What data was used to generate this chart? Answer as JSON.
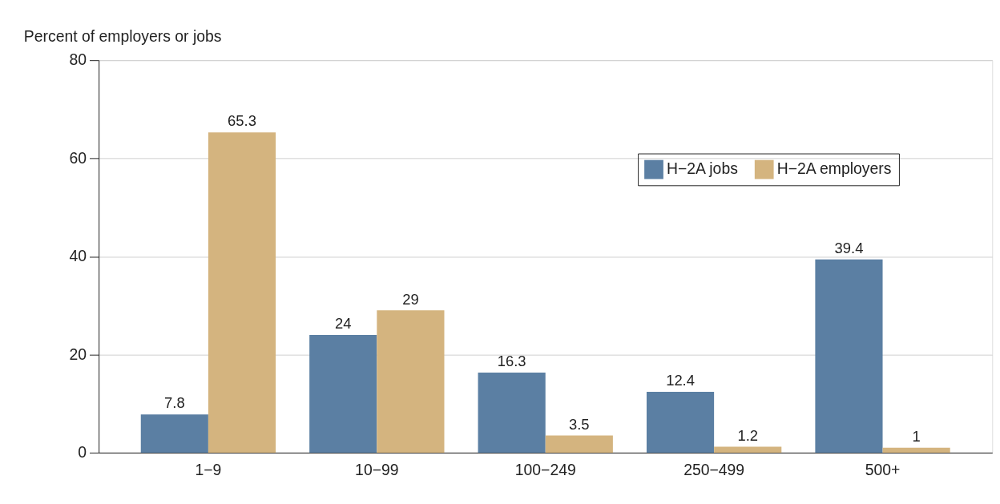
{
  "chart_data": {
    "type": "bar",
    "ylabel": "Percent of employers or jobs",
    "categories": [
      "1−9",
      "10−99",
      "100−249",
      "250−499",
      "500+"
    ],
    "series": [
      {
        "name": "H−2A jobs",
        "color": "#5b7fa3",
        "values": [
          7.8,
          24,
          16.3,
          12.4,
          39.4
        ]
      },
      {
        "name": "H−2A employers",
        "color": "#d4b47f",
        "values": [
          65.3,
          29,
          3.5,
          1.2,
          1
        ]
      }
    ],
    "ylim": [
      0,
      80
    ],
    "yticks": [
      0,
      20,
      40,
      60,
      80
    ],
    "grid": "y",
    "legend": "top right",
    "data_labels": true
  }
}
